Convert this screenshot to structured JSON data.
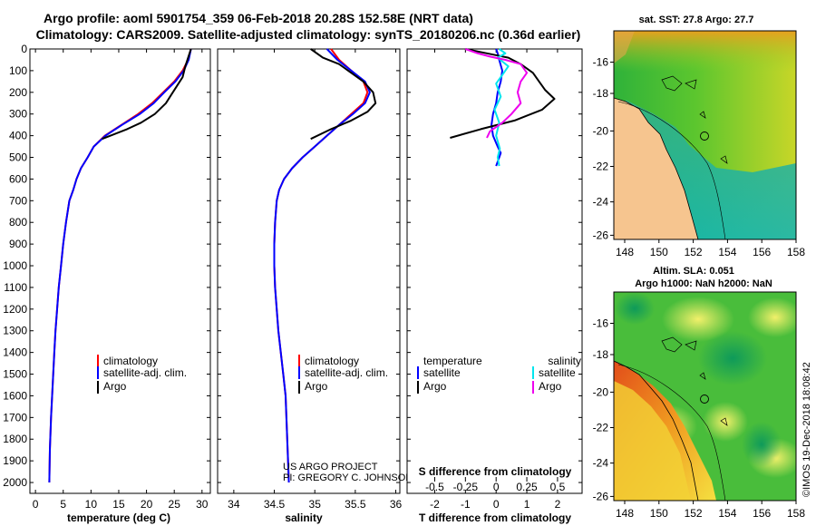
{
  "header": {
    "line1": "Argo profile: aoml 5901754_359 06-Feb-2018 20.28S 152.58E (NRT data)",
    "line2": "Climatology: CARS2009. Satellite-adjusted climatology: synTS_20180206.nc (0.36d earlier)"
  },
  "colors": {
    "climatology": "#ff0000",
    "satellite": "#0000ff",
    "argo": "#000000",
    "sat_salinity": "#00e5ee",
    "argo_salinity_diff": "#ee00ee"
  },
  "chart_data": [
    {
      "type": "line",
      "name": "temperature",
      "xlabel": "temperature (deg C)",
      "xticks": [
        0,
        5,
        10,
        15,
        20,
        25,
        30
      ],
      "xlim": [
        -1,
        31.5
      ],
      "ylim": [
        0,
        2050
      ],
      "yticks": [
        0,
        100,
        200,
        300,
        400,
        500,
        600,
        700,
        800,
        900,
        1000,
        1100,
        1200,
        1300,
        1400,
        1500,
        1600,
        1700,
        1800,
        1900,
        2000
      ],
      "legend": [
        "climatology",
        "satellite-adj. clim.",
        "Argo"
      ],
      "series": [
        {
          "name": "climatology",
          "x": [
            28,
            27.5,
            26.5,
            25,
            23,
            21,
            18.5,
            15.5,
            12.5,
            10.5,
            9.4,
            8.2,
            7.4,
            6.8,
            6.1,
            5.5,
            5.0,
            4.6,
            4.2,
            3.9,
            3.6,
            3.4,
            3.2,
            3.0,
            2.8,
            2.6,
            2.5
          ],
          "y": [
            0,
            50,
            100,
            150,
            200,
            250,
            300,
            350,
            400,
            450,
            500,
            550,
            600,
            650,
            700,
            800,
            900,
            1000,
            1100,
            1200,
            1300,
            1400,
            1500,
            1600,
            1700,
            1850,
            2000
          ]
        },
        {
          "name": "satellite-adj. clim.",
          "x": [
            28,
            27.6,
            26.7,
            25.2,
            23.2,
            21.3,
            18.8,
            15.6,
            12.6,
            10.5,
            9.4,
            8.2,
            7.4,
            6.8,
            6.1,
            5.5,
            5.0,
            4.6,
            4.2,
            3.9,
            3.6,
            3.4,
            3.2,
            3.0,
            2.8,
            2.6,
            2.5
          ],
          "y": [
            0,
            50,
            100,
            150,
            200,
            250,
            300,
            350,
            400,
            450,
            500,
            550,
            600,
            650,
            700,
            800,
            900,
            1000,
            1100,
            1200,
            1300,
            1400,
            1500,
            1600,
            1700,
            1850,
            2000
          ]
        },
        {
          "name": "Argo",
          "x": [
            28,
            27.5,
            27,
            26.5,
            25.5,
            24.5,
            23.5,
            21.5,
            19,
            16.5,
            14,
            12
          ],
          "y": [
            0,
            40,
            80,
            130,
            170,
            210,
            250,
            300,
            340,
            370,
            395,
            415
          ]
        }
      ]
    },
    {
      "type": "line",
      "name": "salinity",
      "xlabel": "salinity",
      "xticks": [
        34,
        34.5,
        35,
        35.5,
        36
      ],
      "xlim": [
        33.8,
        36.05
      ],
      "ylim": [
        0,
        2050
      ],
      "legend": [
        "climatology",
        "satellite-adj. clim.",
        "Argo"
      ],
      "credit_lines": [
        "US ARGO PROJECT",
        "PI: GREGORY C. JOHNSON"
      ],
      "series": [
        {
          "name": "climatology",
          "x": [
            35.2,
            35.3,
            35.45,
            35.6,
            35.65,
            35.6,
            35.45,
            35.3,
            35.15,
            35.0,
            34.85,
            34.72,
            34.62,
            34.56,
            34.53,
            34.51,
            34.5,
            34.5,
            34.51,
            34.53,
            34.55,
            34.58,
            34.61,
            34.64,
            34.66,
            34.68
          ],
          "y": [
            0,
            50,
            100,
            150,
            200,
            250,
            300,
            350,
            400,
            450,
            500,
            550,
            600,
            650,
            700,
            800,
            900,
            1000,
            1100,
            1200,
            1300,
            1400,
            1500,
            1600,
            1800,
            2000
          ]
        },
        {
          "name": "satellite-adj. clim.",
          "x": [
            35.15,
            35.28,
            35.45,
            35.62,
            35.68,
            35.62,
            35.47,
            35.3,
            35.15,
            35.0,
            34.85,
            34.72,
            34.62,
            34.56,
            34.53,
            34.51,
            34.5,
            34.5,
            34.51,
            34.53,
            34.55,
            34.58,
            34.61,
            34.64,
            34.66,
            34.68
          ],
          "y": [
            0,
            50,
            100,
            150,
            200,
            250,
            300,
            350,
            400,
            450,
            500,
            550,
            600,
            650,
            700,
            800,
            900,
            1000,
            1100,
            1200,
            1300,
            1400,
            1500,
            1600,
            1800,
            2000
          ]
        },
        {
          "name": "Argo",
          "x": [
            34.95,
            35.1,
            35.3,
            35.45,
            35.6,
            35.72,
            35.75,
            35.65,
            35.45,
            35.2,
            34.95
          ],
          "y": [
            0,
            40,
            70,
            110,
            150,
            200,
            250,
            290,
            330,
            370,
            415
          ]
        }
      ]
    },
    {
      "type": "line",
      "name": "differences",
      "xlabel_bottom": "T difference from climatology",
      "xlabel_top": "S difference from climatology",
      "xticks": [
        -2,
        -1,
        0,
        1,
        2
      ],
      "xticks_top": [
        "-0.5",
        "-0.25",
        "0",
        "0.25",
        "0.5"
      ],
      "xlim": [
        -2.9,
        2.8
      ],
      "ylim": [
        0,
        2050
      ],
      "legend_headers": [
        "temperature",
        "salinity"
      ],
      "legend_left": [
        "satellite",
        "Argo"
      ],
      "legend_right": [
        "satellite",
        "Argo"
      ],
      "series": [
        {
          "name": "T satellite",
          "x": [
            0,
            0.05,
            0.1,
            0.2,
            0.15,
            0.05,
            0,
            -0.1,
            -0.15,
            -0.1,
            0.05,
            0.15,
            0.1,
            0.05,
            0
          ],
          "y": [
            0,
            20,
            50,
            100,
            150,
            200,
            250,
            300,
            350,
            400,
            450,
            480,
            500,
            520,
            540
          ]
        },
        {
          "name": "T Argo",
          "x": [
            -1,
            -0.3,
            0.4,
            0.8,
            1.2,
            1.4,
            1.6,
            1.9,
            1.5,
            0.6,
            -0.5,
            -1.5
          ],
          "y": [
            0,
            20,
            40,
            70,
            110,
            150,
            190,
            230,
            280,
            330,
            370,
            410
          ]
        },
        {
          "name": "S satellite",
          "x": [
            0.1,
            0.3,
            0.05,
            0.4,
            0.2,
            0.0,
            0.15,
            -0.05,
            0.1,
            0.0,
            0.12,
            0.05,
            0.1
          ],
          "y": [
            0,
            20,
            40,
            80,
            120,
            160,
            220,
            280,
            340,
            400,
            460,
            500,
            540
          ]
        },
        {
          "name": "S Argo",
          "x": [
            -1.0,
            -0.6,
            -0.2,
            0.3,
            0.8,
            1.0,
            0.8,
            0.7,
            0.8,
            0.5,
            0.2,
            -0.2,
            -0.3
          ],
          "y": [
            0,
            20,
            35,
            50,
            70,
            110,
            150,
            200,
            250,
            300,
            340,
            380,
            410
          ]
        }
      ]
    }
  ],
  "maps": {
    "sst": {
      "title": "sat. SST: 27.8 Argo: 27.7",
      "lat_ticks": [
        "-16",
        "-18",
        "-20",
        "-22",
        "-24",
        "-26"
      ],
      "lon_ticks": [
        "148",
        "150",
        "152",
        "154",
        "156",
        "158"
      ]
    },
    "sla": {
      "title1": "Altim. SLA: 0.051",
      "title2": "Argo h1000: NaN h2000: NaN",
      "lat_ticks": [
        "-16",
        "-18",
        "-20",
        "-22",
        "-24",
        "-26"
      ],
      "lon_ticks": [
        "148",
        "150",
        "152",
        "154",
        "156",
        "158"
      ]
    },
    "credit": "©IMOS 19-Dec-2018 18:08:42"
  }
}
